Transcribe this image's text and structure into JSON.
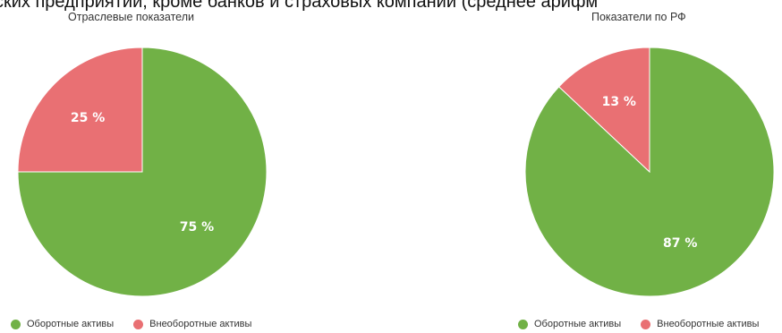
{
  "page_heading": "ских предприятий, кроме банков и страховых компаний (среднее арифм",
  "colors": {
    "current_assets": "#71b146",
    "non_current_assets": "#e97073"
  },
  "chart_data": [
    {
      "type": "pie",
      "title": "Отраслевые показатели",
      "slices": [
        {
          "name": "Оборотные активы",
          "value": 75,
          "label": "75 %",
          "color": "#71b146"
        },
        {
          "name": "Внеоборотные активы",
          "value": 25,
          "label": "25 %",
          "color": "#e97073"
        }
      ],
      "legend": [
        "Оборотные активы",
        "Внеоборотные активы"
      ],
      "legend_position": "bottom-left"
    },
    {
      "type": "pie",
      "title": "Показатели по РФ",
      "slices": [
        {
          "name": "Оборотные активы",
          "value": 87,
          "label": "87 %",
          "color": "#71b146"
        },
        {
          "name": "Внеоборотные активы",
          "value": 13,
          "label": "13 %",
          "color": "#e97073"
        }
      ],
      "legend": [
        "Оборотные активы",
        "Внеоборотные активы"
      ],
      "legend_position": "bottom-left"
    }
  ]
}
